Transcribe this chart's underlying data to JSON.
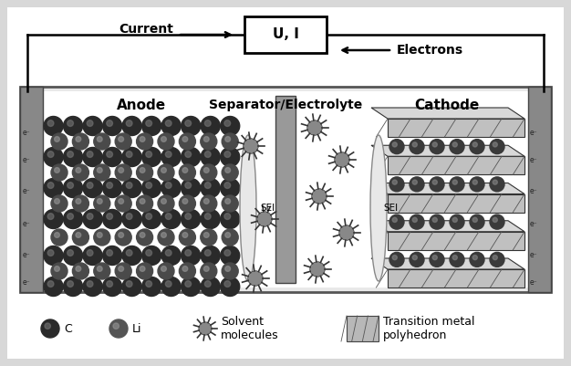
{
  "bg_color": "#d8d8d8",
  "ui_label": "U, I",
  "current_label": "Current",
  "electrons_label": "Electrons",
  "anode_label": "Anode",
  "separator_label": "Separator/Electrolyte",
  "cathode_label": "Cathode",
  "sei_label": "SEI",
  "legend_c": "C",
  "legend_li": "Li",
  "legend_solvent": "Solvent\nmolecules",
  "legend_poly": "Transition metal\npolyhedron",
  "wall_color": "#888888",
  "box_bg": "#ffffff",
  "separator_color": "#999999",
  "anode_atom_dark": "#2a2a2a",
  "anode_atom_mid": "#555555",
  "cathode_slab_color": "#aaaaaa",
  "sei_color": "#cccccc"
}
